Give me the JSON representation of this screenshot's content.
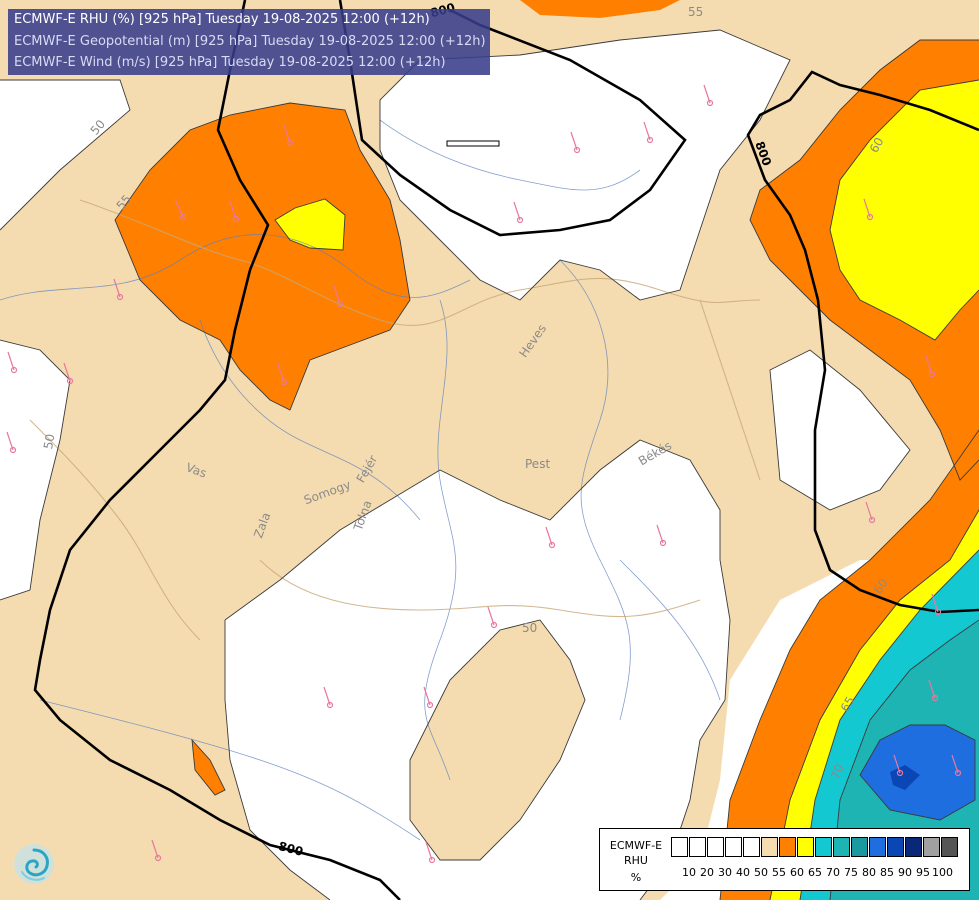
{
  "header": {
    "line1": "ECMWF-E RHU (%) [925 hPa] Tuesday 19-08-2025 12:00 (+12h)",
    "line2": "ECMWF-E Geopotential (m) [925 hPa] Tuesday 19-08-2025 12:00 (+12h)",
    "line3": "ECMWF-E Wind (m/s) [925 hPa] Tuesday 19-08-2025 12:00 (+12h)"
  },
  "legend": {
    "model": "ECMWF-E",
    "variable": "RHU",
    "unit": "%",
    "colors": [
      "#ffffff",
      "#ffffff",
      "#ffffff",
      "#ffffff",
      "#ffffff",
      "#f5dcb0",
      "#ff8000",
      "#ffff00",
      "#14c8d2",
      "#1eb4b4",
      "#1a9a9e",
      "#1e6ee0",
      "#0a46b4",
      "#0a2878",
      "#a0a0a0",
      "#555555"
    ],
    "ticks": [
      "10",
      "20",
      "30",
      "40",
      "50",
      "55",
      "60",
      "65",
      "70",
      "75",
      "80",
      "85",
      "90",
      "95",
      "100"
    ]
  },
  "contour_labels": {
    "rhu": [
      "55",
      "50",
      "55",
      "60",
      "50",
      "50",
      "60",
      "65",
      "70"
    ],
    "geopotential": [
      "800",
      "800",
      "800"
    ]
  },
  "region_labels": [
    "Heves",
    "Pest",
    "Békés",
    "Vas",
    "Somogy",
    "Zala",
    "Tolna",
    "Fejér"
  ],
  "colors": {
    "rhu_55": "#f5dcb0",
    "rhu_60": "#ff8000",
    "rhu_65": "#ffff00",
    "rhu_70": "#14c8d2",
    "rhu_75": "#1eb4b4",
    "rhu_80": "#1e6ee0",
    "rhu_85": "#0a46b4",
    "header_bg": "#383e8c"
  },
  "logo": "ecmwf-swirl-icon"
}
